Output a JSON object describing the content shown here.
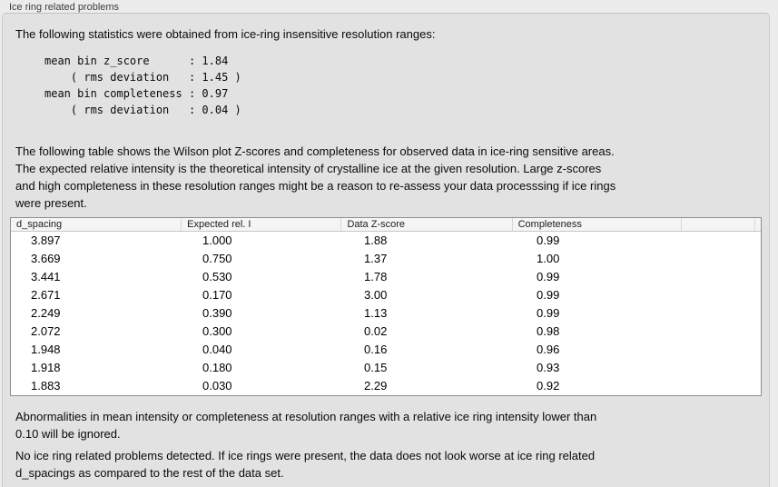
{
  "group_label": "Ice ring related problems",
  "intro": "The following statistics were obtained from ice-ring insensitive resolution ranges:",
  "stats_block": "mean bin z_score      : 1.84\n    ( rms deviation   : 1.45 )\nmean bin completeness : 0.97\n    ( rms deviation   : 0.04 )",
  "stats": {
    "mean_bin_z_score": "1.84",
    "mean_bin_z_score_rms_deviation": "1.45",
    "mean_bin_completeness": "0.97",
    "mean_bin_completeness_rms_deviation": "0.04"
  },
  "table_description": "The following table shows the Wilson plot Z-scores and completeness for observed data in ice-ring sensitive areas.\nThe expected relative intensity is the theoretical intensity of crystalline ice at the given resolution. Large z-scores\nand high completeness in these resolution ranges might be a reason to re-assess your data processsing if ice rings\nwere present.",
  "table": {
    "headers": [
      "d_spacing",
      "Expected rel. I",
      "Data Z-score",
      "Completeness",
      ""
    ],
    "rows": [
      [
        "3.897",
        "1.000",
        "1.88",
        "0.99"
      ],
      [
        "3.669",
        "0.750",
        "1.37",
        "1.00"
      ],
      [
        "3.441",
        "0.530",
        "1.78",
        "0.99"
      ],
      [
        "2.671",
        "0.170",
        "3.00",
        "0.99"
      ],
      [
        "2.249",
        "0.390",
        "1.13",
        "0.99"
      ],
      [
        "2.072",
        "0.300",
        "0.02",
        "0.98"
      ],
      [
        "1.948",
        "0.040",
        "0.16",
        "0.96"
      ],
      [
        "1.918",
        "0.180",
        "0.15",
        "0.93"
      ],
      [
        "1.883",
        "0.030",
        "2.29",
        "0.92"
      ]
    ]
  },
  "ignore_note": "Abnormalities in mean intensity or completeness at resolution ranges with a relative ice ring intensity lower than\n0.10 will be ignored.",
  "conclusion": "No ice ring related problems detected. If ice rings were present, the data does not look worse at ice ring related\nd_spacings as compared to the rest of the data set.",
  "colors": {
    "page_background": "#ececec",
    "panel_background": "#e2e2e2",
    "table_border": "#8f8f8f",
    "table_header_background": "#f5f5f5"
  }
}
